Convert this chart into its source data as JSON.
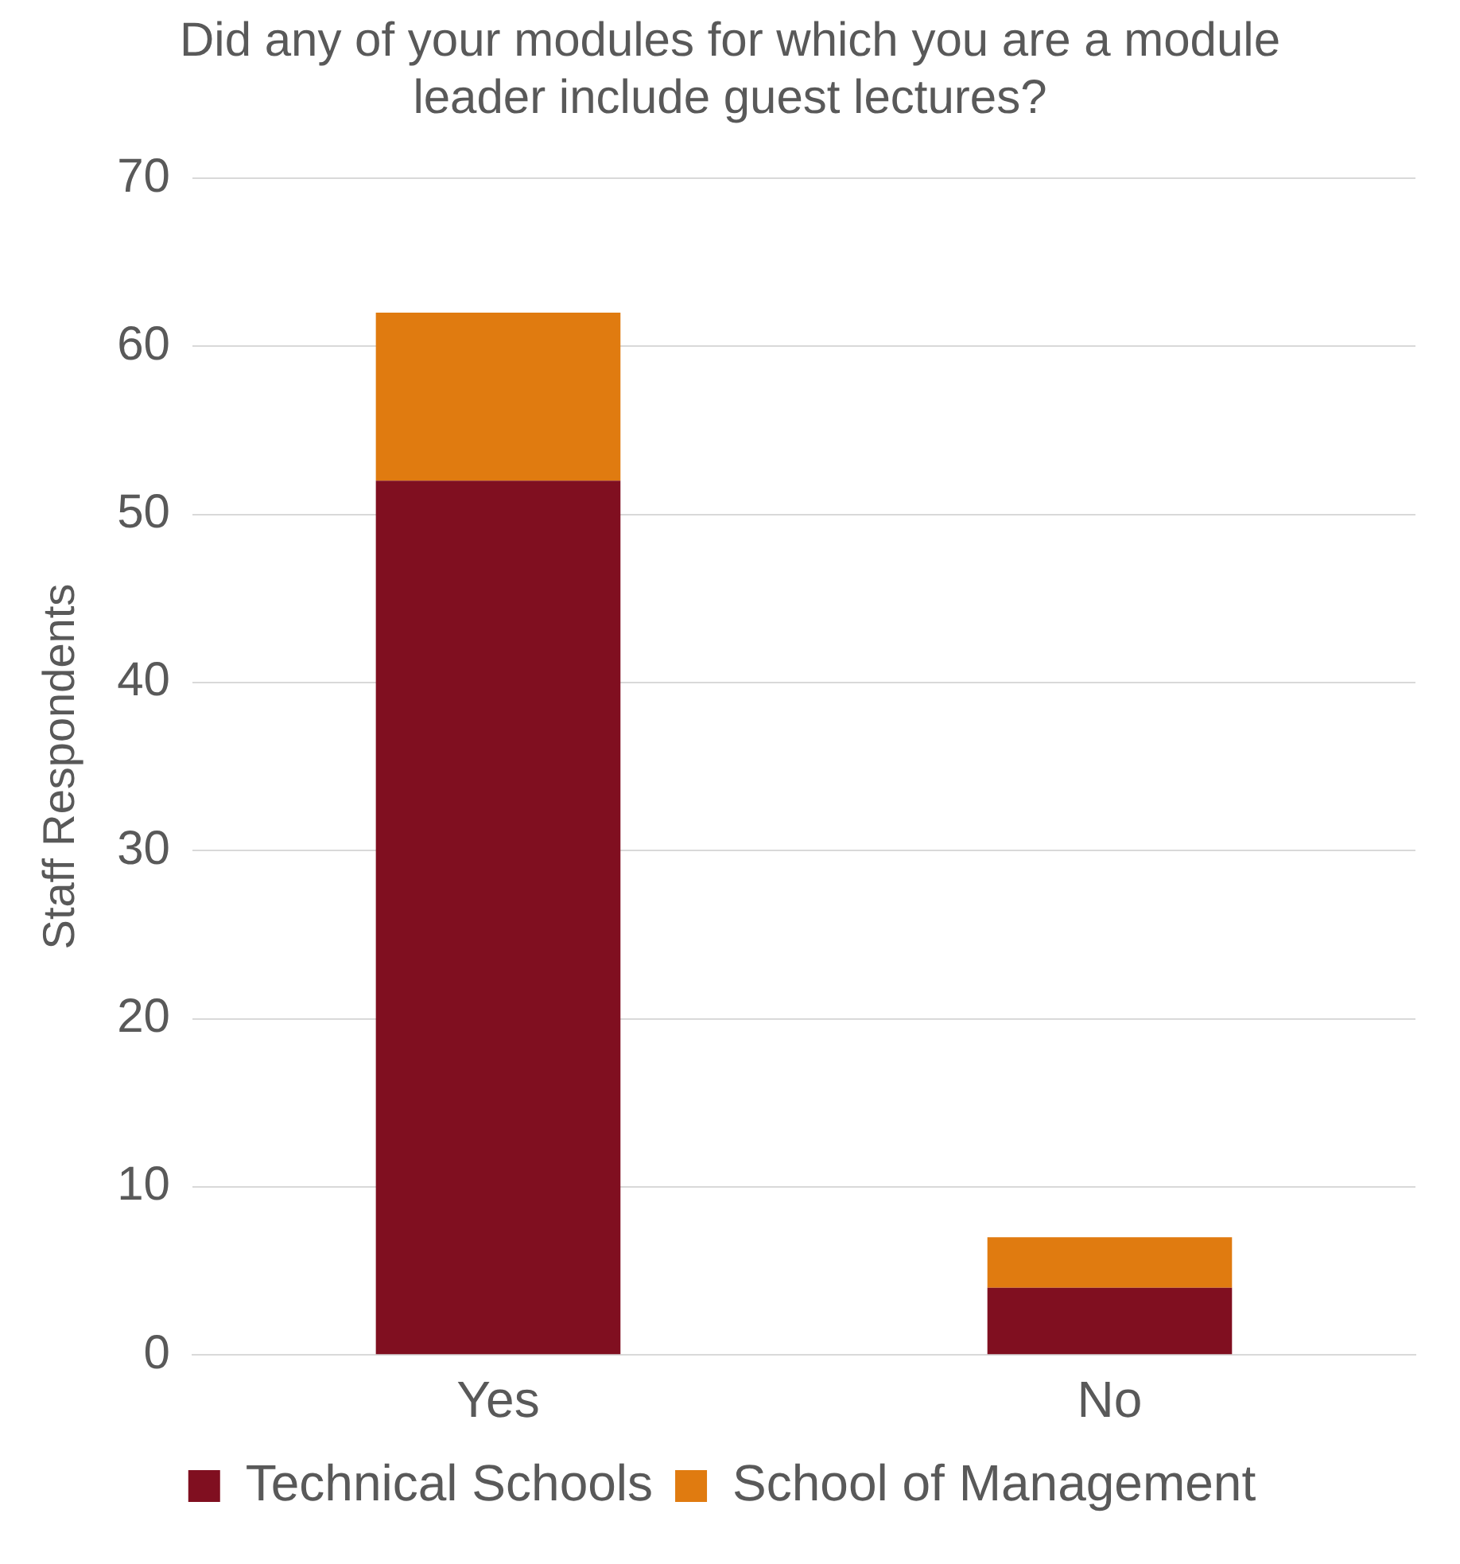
{
  "chart_data": {
    "type": "bar",
    "title": "Did any of your modules for which you are a module leader include guest lectures?",
    "ylabel": "Staff Respondents",
    "categories": [
      "Yes",
      "No"
    ],
    "stacked": true,
    "series": [
      {
        "name": "Technical Schools",
        "color": "#800f20",
        "values": [
          52,
          4
        ]
      },
      {
        "name": "School of Management",
        "color": "#e07b10",
        "values": [
          10,
          3
        ]
      }
    ],
    "ylim": [
      0,
      70
    ],
    "yticks": [
      0,
      10,
      20,
      30,
      40,
      50,
      60,
      70
    ],
    "grid": "y",
    "legend": "bottom"
  }
}
